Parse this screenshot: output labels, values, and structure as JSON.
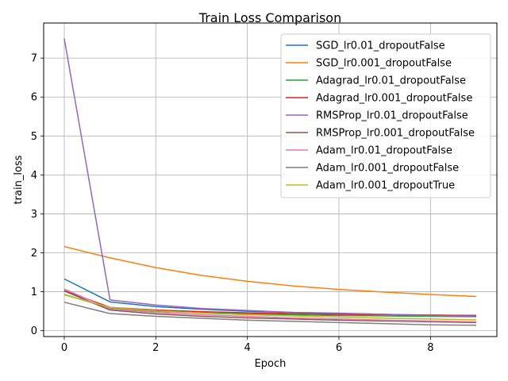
{
  "chart_data": {
    "type": "line",
    "title": "Train Loss Comparison",
    "xlabel": "Epoch",
    "ylabel": "train_loss",
    "x": [
      0,
      1,
      2,
      3,
      4,
      5,
      6,
      7,
      8,
      9
    ],
    "xlim": [
      -0.45,
      9.45
    ],
    "ylim": [
      -0.15,
      7.9
    ],
    "xticks": [
      0,
      2,
      4,
      6,
      8
    ],
    "yticks": [
      0,
      1,
      2,
      3,
      4,
      5,
      6,
      7
    ],
    "grid": true,
    "legend_position": "top-right",
    "series": [
      {
        "name": "SGD_lr0.01_dropoutFalse",
        "color": "#1f77b4",
        "values": [
          1.33,
          0.74,
          0.62,
          0.55,
          0.5,
          0.47,
          0.44,
          0.42,
          0.4,
          0.39
        ]
      },
      {
        "name": "SGD_lr0.001_dropoutFalse",
        "color": "#ff7f0e",
        "values": [
          2.16,
          1.87,
          1.62,
          1.42,
          1.27,
          1.15,
          1.06,
          0.99,
          0.93,
          0.88
        ]
      },
      {
        "name": "Adagrad_lr0.01_dropoutFalse",
        "color": "#2ca02c",
        "values": [
          0.93,
          0.58,
          0.5,
          0.46,
          0.43,
          0.41,
          0.39,
          0.38,
          0.37,
          0.36
        ]
      },
      {
        "name": "Adagrad_lr0.001_dropoutFalse",
        "color": "#d62728",
        "values": [
          1.03,
          0.6,
          0.53,
          0.49,
          0.46,
          0.44,
          0.42,
          0.41,
          0.4,
          0.39
        ]
      },
      {
        "name": "RMSProp_lr0.01_dropoutFalse",
        "color": "#9467bd",
        "values": [
          7.5,
          0.79,
          0.66,
          0.57,
          0.52,
          0.47,
          0.45,
          0.42,
          0.39,
          0.37
        ]
      },
      {
        "name": "RMSProp_lr0.001_dropoutFalse",
        "color": "#8c564b",
        "values": [
          1.02,
          0.53,
          0.43,
          0.37,
          0.33,
          0.3,
          0.27,
          0.25,
          0.23,
          0.21
        ]
      },
      {
        "name": "Adam_lr0.01_dropoutFalse",
        "color": "#e377c2",
        "values": [
          1.07,
          0.56,
          0.47,
          0.41,
          0.37,
          0.33,
          0.3,
          0.27,
          0.25,
          0.23
        ]
      },
      {
        "name": "Adam_lr0.001_dropoutFalse",
        "color": "#7f7f7f",
        "values": [
          0.73,
          0.44,
          0.37,
          0.32,
          0.27,
          0.24,
          0.21,
          0.18,
          0.15,
          0.14
        ]
      },
      {
        "name": "Adam_lr0.001_dropoutTrue",
        "color": "#bcbd22",
        "values": [
          0.92,
          0.6,
          0.51,
          0.45,
          0.41,
          0.38,
          0.35,
          0.32,
          0.3,
          0.28
        ]
      }
    ]
  }
}
